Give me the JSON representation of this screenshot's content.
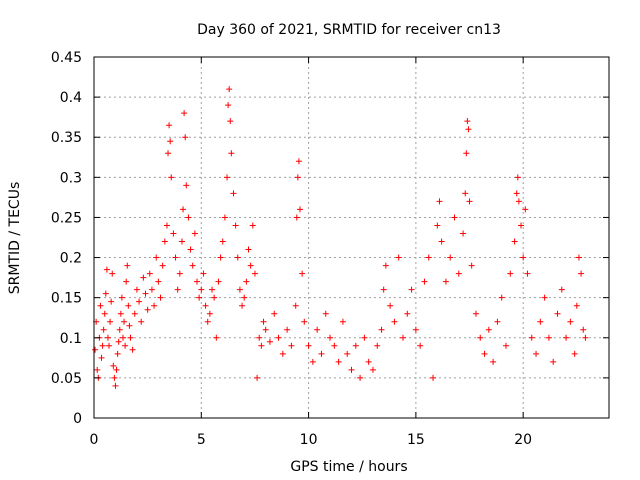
{
  "chart_data": {
    "type": "scatter",
    "title": "Day 360 of 2021, SRMTID for receiver cn13",
    "xlabel": "GPS time / hours",
    "ylabel": "SRMTID / TECUs",
    "xlim": [
      0,
      24
    ],
    "ylim": [
      0,
      0.45
    ],
    "grid": true,
    "marker": "+",
    "color": "#ff0000",
    "x_ticks": [
      0,
      5,
      10,
      15,
      20
    ],
    "x_tick_labels": [
      "0",
      "5",
      "10",
      "15",
      "20"
    ],
    "y_ticks": [
      0,
      0.05,
      0.1,
      0.15,
      0.2,
      0.25,
      0.3,
      0.35,
      0.4,
      0.45
    ],
    "y_tick_labels": [
      "0",
      "0.05",
      "0.1",
      "0.15",
      "0.2",
      "0.25",
      "0.3",
      "0.35",
      "0.4",
      "0.45"
    ],
    "series": [
      {
        "name": "SRMTID",
        "points": [
          [
            0.05,
            0.085
          ],
          [
            0.1,
            0.12
          ],
          [
            0.15,
            0.06
          ],
          [
            0.2,
            0.05
          ],
          [
            0.25,
            0.1
          ],
          [
            0.3,
            0.14
          ],
          [
            0.35,
            0.075
          ],
          [
            0.4,
            0.09
          ],
          [
            0.45,
            0.11
          ],
          [
            0.5,
            0.13
          ],
          [
            0.55,
            0.155
          ],
          [
            0.6,
            0.185
          ],
          [
            0.65,
            0.1
          ],
          [
            0.7,
            0.09
          ],
          [
            0.75,
            0.12
          ],
          [
            0.8,
            0.145
          ],
          [
            0.85,
            0.18
          ],
          [
            0.9,
            0.065
          ],
          [
            0.95,
            0.05
          ],
          [
            1.0,
            0.04
          ],
          [
            1.05,
            0.06
          ],
          [
            1.1,
            0.08
          ],
          [
            1.15,
            0.095
          ],
          [
            1.2,
            0.11
          ],
          [
            1.25,
            0.13
          ],
          [
            1.3,
            0.15
          ],
          [
            1.35,
            0.1
          ],
          [
            1.4,
            0.12
          ],
          [
            1.45,
            0.09
          ],
          [
            1.5,
            0.17
          ],
          [
            1.55,
            0.19
          ],
          [
            1.6,
            0.14
          ],
          [
            1.65,
            0.115
          ],
          [
            1.7,
            0.1
          ],
          [
            1.8,
            0.085
          ],
          [
            1.9,
            0.13
          ],
          [
            2.0,
            0.16
          ],
          [
            2.1,
            0.145
          ],
          [
            2.2,
            0.12
          ],
          [
            2.3,
            0.175
          ],
          [
            2.4,
            0.155
          ],
          [
            2.5,
            0.135
          ],
          [
            2.6,
            0.18
          ],
          [
            2.7,
            0.16
          ],
          [
            2.8,
            0.14
          ],
          [
            2.9,
            0.2
          ],
          [
            3.0,
            0.17
          ],
          [
            3.1,
            0.15
          ],
          [
            3.2,
            0.19
          ],
          [
            3.3,
            0.22
          ],
          [
            3.4,
            0.24
          ],
          [
            3.45,
            0.33
          ],
          [
            3.5,
            0.365
          ],
          [
            3.55,
            0.345
          ],
          [
            3.6,
            0.3
          ],
          [
            3.7,
            0.23
          ],
          [
            3.8,
            0.2
          ],
          [
            3.9,
            0.16
          ],
          [
            4.0,
            0.18
          ],
          [
            4.1,
            0.22
          ],
          [
            4.15,
            0.26
          ],
          [
            4.2,
            0.38
          ],
          [
            4.25,
            0.35
          ],
          [
            4.3,
            0.29
          ],
          [
            4.4,
            0.25
          ],
          [
            4.5,
            0.21
          ],
          [
            4.6,
            0.19
          ],
          [
            4.7,
            0.23
          ],
          [
            4.8,
            0.17
          ],
          [
            4.9,
            0.15
          ],
          [
            5.0,
            0.16
          ],
          [
            5.1,
            0.18
          ],
          [
            5.2,
            0.14
          ],
          [
            5.3,
            0.12
          ],
          [
            5.4,
            0.13
          ],
          [
            5.5,
            0.16
          ],
          [
            5.6,
            0.15
          ],
          [
            5.7,
            0.1
          ],
          [
            5.8,
            0.17
          ],
          [
            5.9,
            0.2
          ],
          [
            6.0,
            0.22
          ],
          [
            6.1,
            0.25
          ],
          [
            6.2,
            0.3
          ],
          [
            6.25,
            0.39
          ],
          [
            6.3,
            0.41
          ],
          [
            6.35,
            0.37
          ],
          [
            6.4,
            0.33
          ],
          [
            6.5,
            0.28
          ],
          [
            6.6,
            0.24
          ],
          [
            6.7,
            0.2
          ],
          [
            6.8,
            0.16
          ],
          [
            6.9,
            0.14
          ],
          [
            7.0,
            0.15
          ],
          [
            7.1,
            0.17
          ],
          [
            7.2,
            0.21
          ],
          [
            7.3,
            0.19
          ],
          [
            7.4,
            0.24
          ],
          [
            7.5,
            0.18
          ],
          [
            7.6,
            0.05
          ],
          [
            7.7,
            0.1
          ],
          [
            7.8,
            0.09
          ],
          [
            7.9,
            0.12
          ],
          [
            8.0,
            0.11
          ],
          [
            8.2,
            0.095
          ],
          [
            8.4,
            0.13
          ],
          [
            8.6,
            0.1
          ],
          [
            8.8,
            0.08
          ],
          [
            9.0,
            0.11
          ],
          [
            9.2,
            0.09
          ],
          [
            9.4,
            0.14
          ],
          [
            9.45,
            0.25
          ],
          [
            9.5,
            0.3
          ],
          [
            9.55,
            0.32
          ],
          [
            9.6,
            0.26
          ],
          [
            9.7,
            0.18
          ],
          [
            9.8,
            0.12
          ],
          [
            10.0,
            0.09
          ],
          [
            10.2,
            0.07
          ],
          [
            10.4,
            0.11
          ],
          [
            10.6,
            0.08
          ],
          [
            10.8,
            0.13
          ],
          [
            11.0,
            0.1
          ],
          [
            11.2,
            0.09
          ],
          [
            11.4,
            0.07
          ],
          [
            11.6,
            0.12
          ],
          [
            11.8,
            0.08
          ],
          [
            12.0,
            0.06
          ],
          [
            12.2,
            0.09
          ],
          [
            12.4,
            0.05
          ],
          [
            12.6,
            0.1
          ],
          [
            12.8,
            0.07
          ],
          [
            13.0,
            0.06
          ],
          [
            13.2,
            0.09
          ],
          [
            13.4,
            0.11
          ],
          [
            13.5,
            0.16
          ],
          [
            13.6,
            0.19
          ],
          [
            13.8,
            0.14
          ],
          [
            14.0,
            0.12
          ],
          [
            14.2,
            0.2
          ],
          [
            14.4,
            0.1
          ],
          [
            14.6,
            0.13
          ],
          [
            14.8,
            0.16
          ],
          [
            15.0,
            0.11
          ],
          [
            15.2,
            0.09
          ],
          [
            15.4,
            0.17
          ],
          [
            15.6,
            0.2
          ],
          [
            15.8,
            0.05
          ],
          [
            16.0,
            0.24
          ],
          [
            16.1,
            0.27
          ],
          [
            16.2,
            0.22
          ],
          [
            16.4,
            0.17
          ],
          [
            16.6,
            0.2
          ],
          [
            16.8,
            0.25
          ],
          [
            17.0,
            0.18
          ],
          [
            17.2,
            0.23
          ],
          [
            17.3,
            0.28
          ],
          [
            17.35,
            0.33
          ],
          [
            17.4,
            0.37
          ],
          [
            17.45,
            0.36
          ],
          [
            17.5,
            0.27
          ],
          [
            17.6,
            0.19
          ],
          [
            17.8,
            0.13
          ],
          [
            18.0,
            0.1
          ],
          [
            18.2,
            0.08
          ],
          [
            18.4,
            0.11
          ],
          [
            18.6,
            0.07
          ],
          [
            18.8,
            0.12
          ],
          [
            19.0,
            0.15
          ],
          [
            19.2,
            0.09
          ],
          [
            19.4,
            0.18
          ],
          [
            19.6,
            0.22
          ],
          [
            19.7,
            0.28
          ],
          [
            19.75,
            0.3
          ],
          [
            19.8,
            0.27
          ],
          [
            19.9,
            0.24
          ],
          [
            20.0,
            0.2
          ],
          [
            20.1,
            0.26
          ],
          [
            20.2,
            0.18
          ],
          [
            20.4,
            0.1
          ],
          [
            20.6,
            0.08
          ],
          [
            20.8,
            0.12
          ],
          [
            21.0,
            0.15
          ],
          [
            21.2,
            0.1
          ],
          [
            21.4,
            0.07
          ],
          [
            21.6,
            0.13
          ],
          [
            21.8,
            0.16
          ],
          [
            22.0,
            0.1
          ],
          [
            22.2,
            0.12
          ],
          [
            22.4,
            0.08
          ],
          [
            22.5,
            0.14
          ],
          [
            22.6,
            0.2
          ],
          [
            22.7,
            0.18
          ],
          [
            22.8,
            0.11
          ],
          [
            22.9,
            0.1
          ]
        ]
      }
    ]
  }
}
